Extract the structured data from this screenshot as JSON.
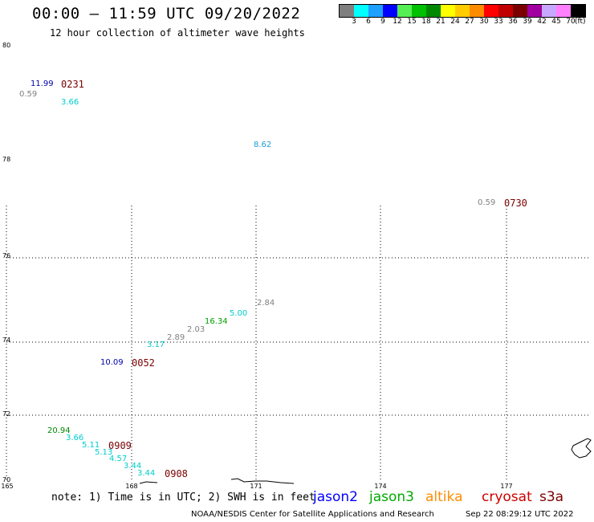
{
  "header": {
    "title": "00:00 – 11:59 UTC 09/20/2022",
    "subtitle": "12 hour collection of altimeter wave heights"
  },
  "colorbar": {
    "swatches": [
      {
        "color": "#7f7f7f",
        "label": "3"
      },
      {
        "color": "#00ffff",
        "label": "6"
      },
      {
        "color": "#1ea0ff",
        "label": "9"
      },
      {
        "color": "#0000ff",
        "label": "12"
      },
      {
        "color": "#55ee55",
        "label": "15"
      },
      {
        "color": "#00c000",
        "label": "18"
      },
      {
        "color": "#008800",
        "label": "21"
      },
      {
        "color": "#ffff00",
        "label": "24"
      },
      {
        "color": "#ffcc00",
        "label": "27"
      },
      {
        "color": "#ff8c00",
        "label": "30"
      },
      {
        "color": "#ff0000",
        "label": "33"
      },
      {
        "color": "#c00000",
        "label": "36"
      },
      {
        "color": "#7a0000",
        "label": "39"
      },
      {
        "color": "#a000a0",
        "label": "42"
      },
      {
        "color": "#c8a8ff",
        "label": "45"
      },
      {
        "color": "#ff80ff",
        "label": "70"
      },
      {
        "color": "#000000",
        "label": ""
      }
    ],
    "unit": "(ft)"
  },
  "axes": {
    "lat_labels": [
      "80",
      "78",
      "76",
      "74",
      "72",
      "70"
    ],
    "lon_labels": [
      "165",
      "168",
      "171",
      "174",
      "177"
    ]
  },
  "observations": [
    {
      "text": "11.99",
      "color": "#0000aa"
    },
    {
      "text": "0.59",
      "color": "#7f7f7f"
    },
    {
      "text": "3.66",
      "color": "#00cccc"
    },
    {
      "text": "8.62",
      "color": "#1e9bd7"
    },
    {
      "text": "0.59",
      "color": "#7f7f7f"
    },
    {
      "text": "2.84",
      "color": "#7f7f7f"
    },
    {
      "text": "5.00",
      "color": "#00cccc"
    },
    {
      "text": "16.34",
      "color": "#00a000"
    },
    {
      "text": "2.03",
      "color": "#7f7f7f"
    },
    {
      "text": "2.89",
      "color": "#7f7f7f"
    },
    {
      "text": "3.17",
      "color": "#00cccc"
    },
    {
      "text": "10.09",
      "color": "#0000aa"
    },
    {
      "text": "20.94",
      "color": "#008800"
    },
    {
      "text": "3.66",
      "color": "#00cccc"
    },
    {
      "text": "5.11",
      "color": "#00cccc"
    },
    {
      "text": "5.13",
      "color": "#00cccc"
    },
    {
      "text": "4.57",
      "color": "#00cccc"
    },
    {
      "text": "3.44",
      "color": "#00cccc"
    },
    {
      "text": "3.44",
      "color": "#00cccc"
    }
  ],
  "pass_times": [
    {
      "text": "0231",
      "color": "#7a0000"
    },
    {
      "text": "0730",
      "color": "#7a0000"
    },
    {
      "text": "0052",
      "color": "#7a0000"
    },
    {
      "text": "0909",
      "color": "#7a0000"
    },
    {
      "text": "0908",
      "color": "#7a0000"
    }
  ],
  "footer": {
    "note": "note: 1) Time is in UTC; 2) SWH is in feet",
    "legend": [
      {
        "label": "jason2",
        "color": "#0000ff"
      },
      {
        "label": "jason3",
        "color": "#00aa00"
      },
      {
        "label": "altika",
        "color": "#ff8c00"
      },
      {
        "label": "cryosat",
        "color": "#cc0000"
      },
      {
        "label": "s3a",
        "color": "#7a0000"
      }
    ],
    "credit": "NOAA/NESDIS Center for Satellite Applications and Research",
    "timestamp": "Sep 22 08:29:12 UTC 2022"
  }
}
